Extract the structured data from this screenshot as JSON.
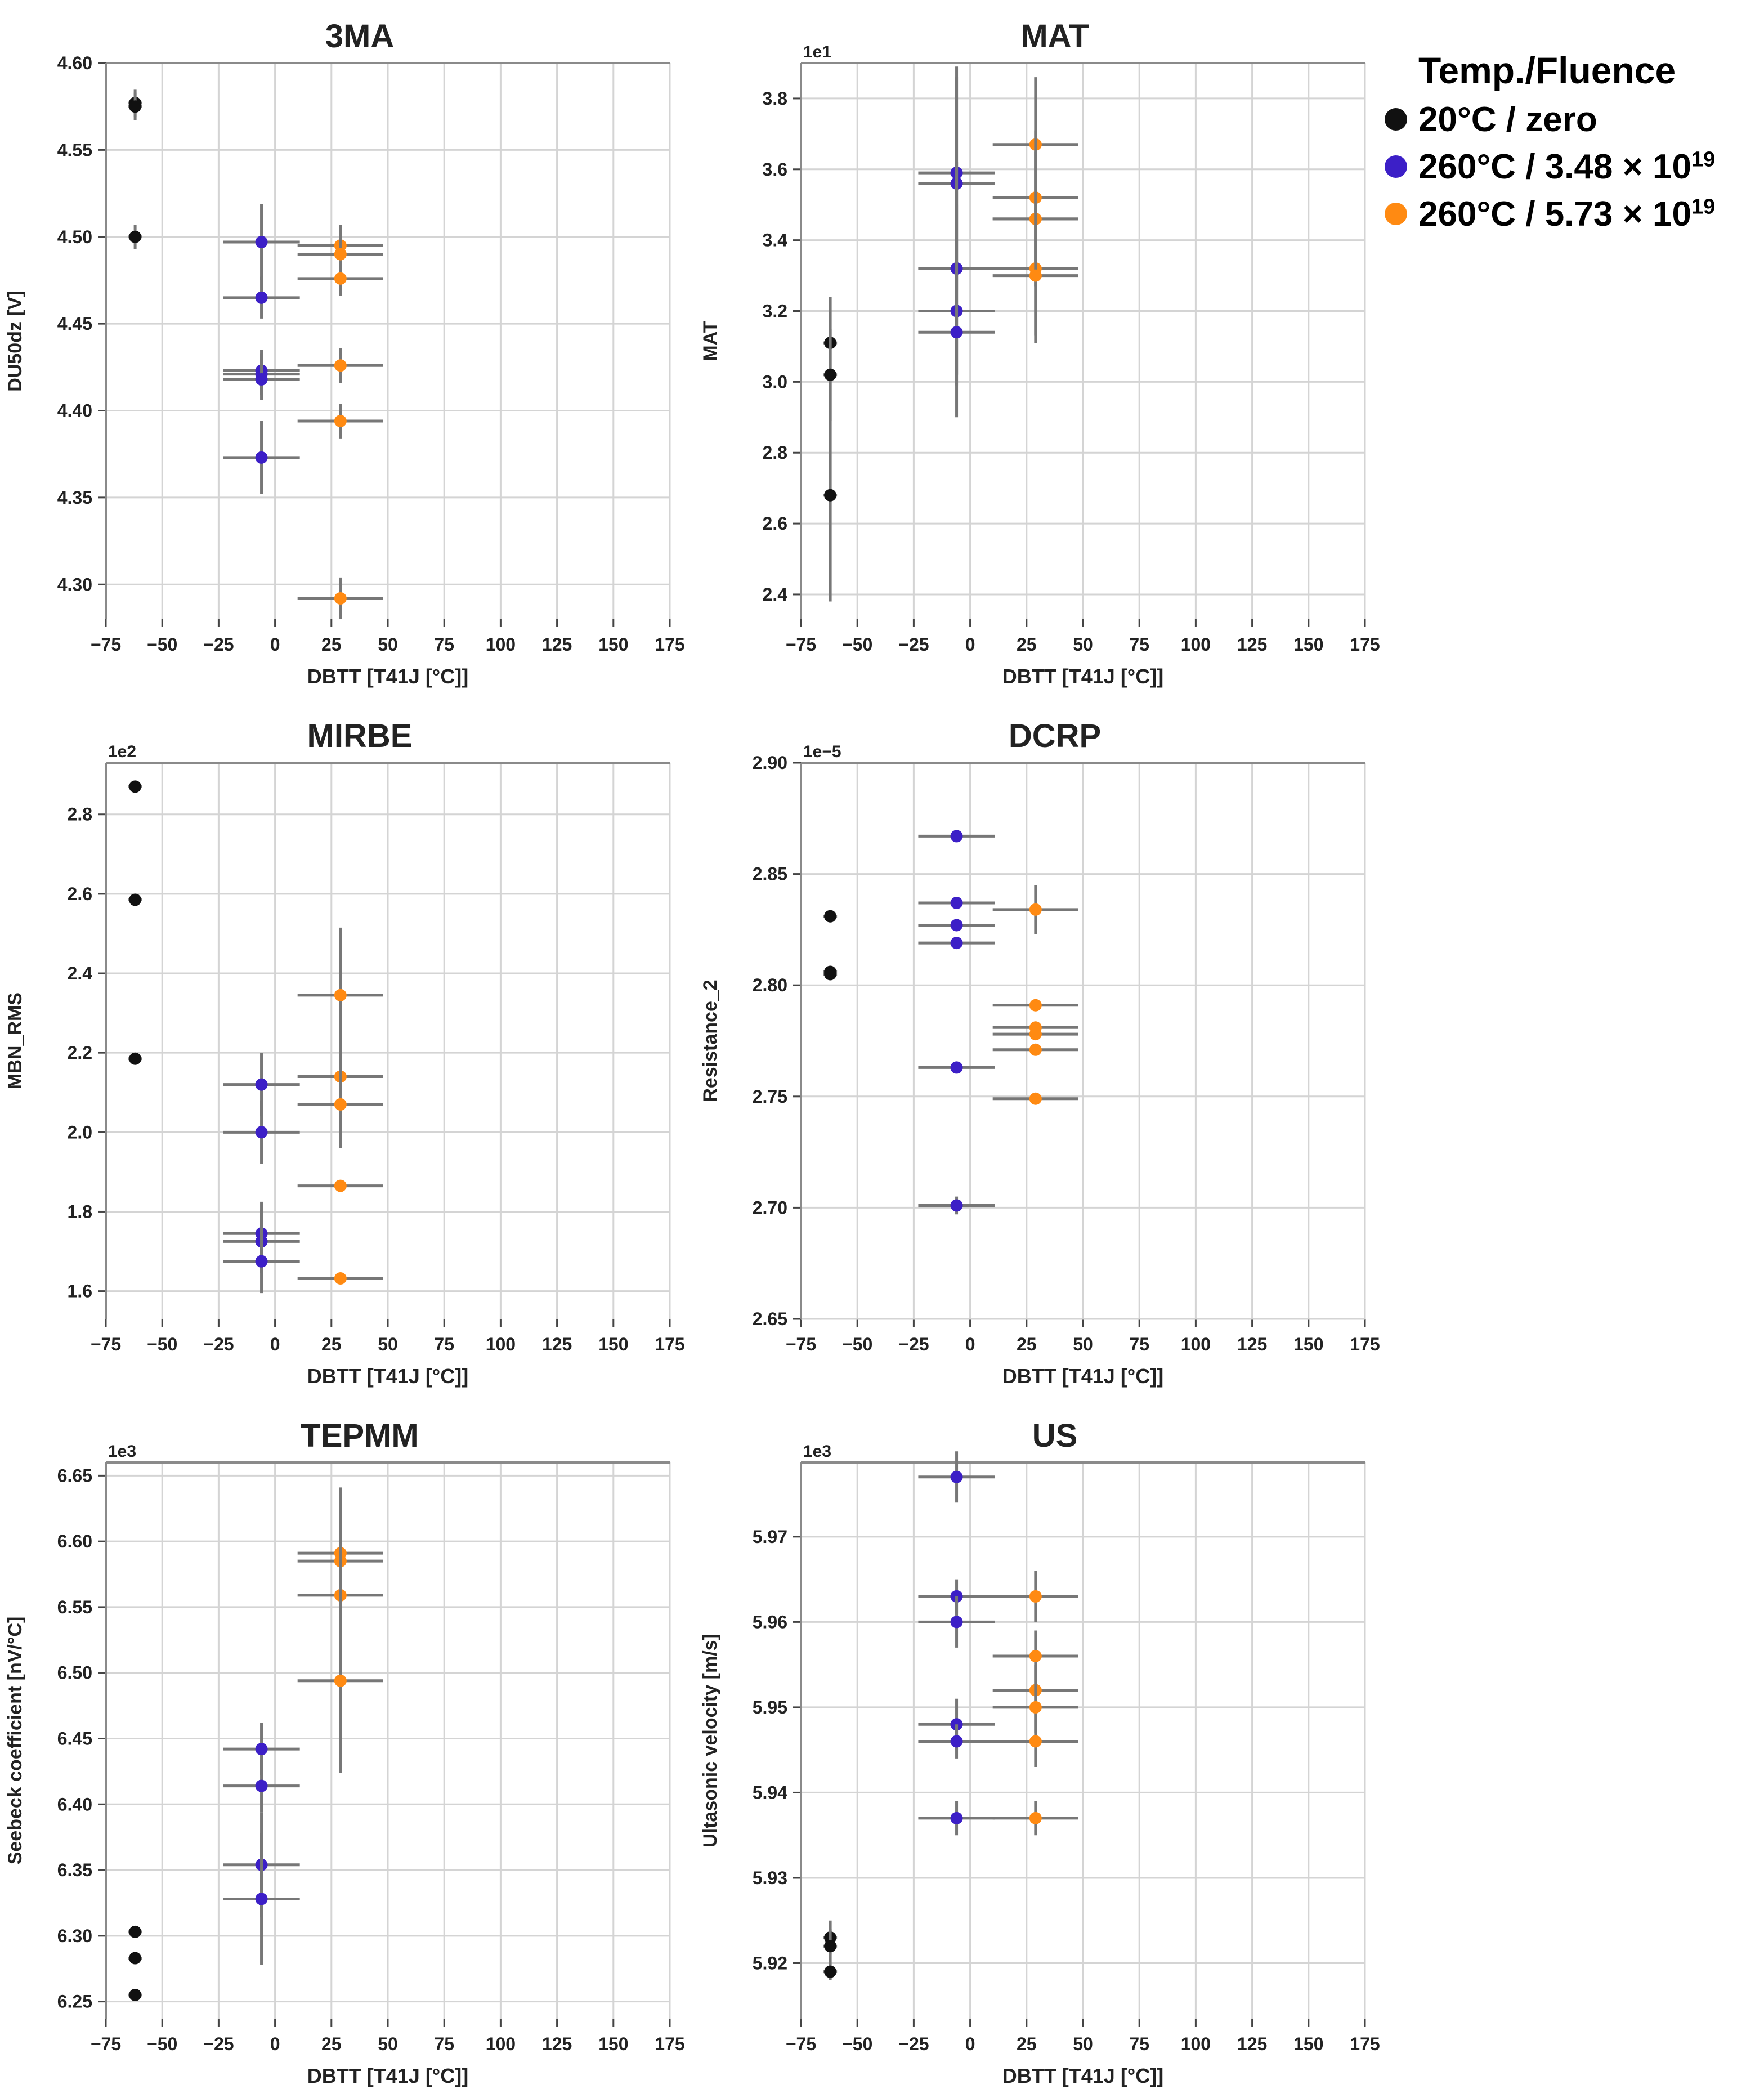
{
  "colors": {
    "ref": "#111111",
    "low": "#3c1fc7",
    "high": "#ff8a12",
    "err": "#777777",
    "grid": "#d4d4d4"
  },
  "legend": {
    "title": "Temp./Fluence",
    "entries": [
      {
        "series": "ref",
        "label": "20°C / zero",
        "sup": ""
      },
      {
        "series": "low",
        "label": "260°C / 3.48 × 10",
        "sup": "19"
      },
      {
        "series": "high",
        "label": "260°C / 5.73 × 10",
        "sup": "19"
      }
    ]
  },
  "chart_data": [
    {
      "type": "scatter",
      "title": "3MA",
      "xlabel": "DBTT [T41J [°C]]",
      "ylabel": "DU50dz [V]",
      "offset_label": "",
      "xlim": [
        -75,
        175
      ],
      "ylim": [
        4.28,
        4.6
      ],
      "xticks": [
        -75,
        -50,
        -25,
        0,
        25,
        50,
        75,
        100,
        125,
        150,
        175
      ],
      "xtick_labels": [
        "−75",
        "−50",
        "−25",
        "0",
        "25",
        "50",
        "75",
        "100",
        "125",
        "150",
        "175"
      ],
      "yticks": [
        4.3,
        4.35,
        4.4,
        4.45,
        4.5,
        4.55,
        4.6
      ],
      "ytick_labels": [
        "4.30",
        "4.35",
        "4.40",
        "4.45",
        "4.50",
        "4.55",
        "4.60"
      ],
      "points": [
        {
          "series": "ref",
          "x": -62,
          "y": 4.577,
          "xerr": 3,
          "yerr": 0.008
        },
        {
          "series": "ref",
          "x": -62,
          "y": 4.575,
          "xerr": 3,
          "yerr": 0.008
        },
        {
          "series": "ref",
          "x": -62,
          "y": 4.5,
          "xerr": 3,
          "yerr": 0.007
        },
        {
          "series": "low",
          "x": -6,
          "y": 4.497,
          "xerr": 17,
          "yerr": 0.022
        },
        {
          "series": "low",
          "x": -6,
          "y": 4.465,
          "xerr": 17,
          "yerr": 0.012
        },
        {
          "series": "low",
          "x": -6,
          "y": 4.423,
          "xerr": 17,
          "yerr": 0.012
        },
        {
          "series": "low",
          "x": -6,
          "y": 4.421,
          "xerr": 17,
          "yerr": 0.012
        },
        {
          "series": "low",
          "x": -6,
          "y": 4.418,
          "xerr": 17,
          "yerr": 0.012
        },
        {
          "series": "low",
          "x": -6,
          "y": 4.373,
          "xerr": 17,
          "yerr": 0.021
        },
        {
          "series": "high",
          "x": 29,
          "y": 4.495,
          "xerr": 19,
          "yerr": 0.012
        },
        {
          "series": "high",
          "x": 29,
          "y": 4.49,
          "xerr": 19,
          "yerr": 0.012
        },
        {
          "series": "high",
          "x": 29,
          "y": 4.476,
          "xerr": 19,
          "yerr": 0.01
        },
        {
          "series": "high",
          "x": 29,
          "y": 4.426,
          "xerr": 19,
          "yerr": 0.01
        },
        {
          "series": "high",
          "x": 29,
          "y": 4.394,
          "xerr": 19,
          "yerr": 0.01
        },
        {
          "series": "high",
          "x": 29,
          "y": 4.292,
          "xerr": 19,
          "yerr": 0.012
        }
      ]
    },
    {
      "type": "scatter",
      "title": "MAT",
      "xlabel": "DBTT [T41J [°C]]",
      "ylabel": "MAT",
      "offset_label": "1e1",
      "xlim": [
        -75,
        175
      ],
      "ylim": [
        2.33,
        3.9
      ],
      "xticks": [
        -75,
        -50,
        -25,
        0,
        25,
        50,
        75,
        100,
        125,
        150,
        175
      ],
      "xtick_labels": [
        "−75",
        "−50",
        "−25",
        "0",
        "25",
        "50",
        "75",
        "100",
        "125",
        "150",
        "175"
      ],
      "yticks": [
        2.4,
        2.6,
        2.8,
        3.0,
        3.2,
        3.4,
        3.6,
        3.8
      ],
      "ytick_labels": [
        "2.4",
        "2.6",
        "2.8",
        "3.0",
        "3.2",
        "3.4",
        "3.6",
        "3.8"
      ],
      "points": [
        {
          "series": "ref",
          "x": -62,
          "y": 3.11,
          "xerr": 3,
          "yerr": 0.13
        },
        {
          "series": "ref",
          "x": -62,
          "y": 3.02,
          "xerr": 3,
          "yerr": 0.13
        },
        {
          "series": "ref",
          "x": -62,
          "y": 2.68,
          "xerr": 3,
          "yerr": 0.3
        },
        {
          "series": "low",
          "x": -6,
          "y": 3.59,
          "xerr": 17,
          "yerr": 0.3
        },
        {
          "series": "low",
          "x": -6,
          "y": 3.56,
          "xerr": 17,
          "yerr": 0.3
        },
        {
          "series": "low",
          "x": -6,
          "y": 3.32,
          "xerr": 17,
          "yerr": 0.3
        },
        {
          "series": "low",
          "x": -6,
          "y": 3.32,
          "xerr": 17,
          "yerr": 0.3
        },
        {
          "series": "low",
          "x": -6,
          "y": 3.2,
          "xerr": 17,
          "yerr": 0.3
        },
        {
          "series": "low",
          "x": -6,
          "y": 3.14,
          "xerr": 17,
          "yerr": 0.15
        },
        {
          "series": "high",
          "x": 29,
          "y": 3.67,
          "xerr": 19,
          "yerr": 0.19
        },
        {
          "series": "high",
          "x": 29,
          "y": 3.52,
          "xerr": 19,
          "yerr": 0.19
        },
        {
          "series": "high",
          "x": 29,
          "y": 3.46,
          "xerr": 19,
          "yerr": 0.19
        },
        {
          "series": "high",
          "x": 29,
          "y": 3.46,
          "xerr": 19,
          "yerr": 0.19
        },
        {
          "series": "high",
          "x": 29,
          "y": 3.32,
          "xerr": 19,
          "yerr": 0.19
        },
        {
          "series": "high",
          "x": 29,
          "y": 3.3,
          "xerr": 19,
          "yerr": 0.19
        }
      ]
    },
    {
      "type": "scatter",
      "title": "MIRBE",
      "xlabel": "DBTT [T41J [°C]]",
      "ylabel": "MBN_RMS",
      "offset_label": "1e2",
      "xlim": [
        -75,
        175
      ],
      "ylim": [
        1.53,
        2.93
      ],
      "xticks": [
        -75,
        -50,
        -25,
        0,
        25,
        50,
        75,
        100,
        125,
        150,
        175
      ],
      "xtick_labels": [
        "−75",
        "−50",
        "−25",
        "0",
        "25",
        "50",
        "75",
        "100",
        "125",
        "150",
        "175"
      ],
      "yticks": [
        1.6,
        1.8,
        2.0,
        2.2,
        2.4,
        2.6,
        2.8
      ],
      "ytick_labels": [
        "1.6",
        "1.8",
        "2.0",
        "2.2",
        "2.4",
        "2.6",
        "2.8"
      ],
      "points": [
        {
          "series": "ref",
          "x": -62,
          "y": 2.87,
          "xerr": 3,
          "yerr": 0.015
        },
        {
          "series": "ref",
          "x": -62,
          "y": 2.585,
          "xerr": 3,
          "yerr": 0.015
        },
        {
          "series": "ref",
          "x": -62,
          "y": 2.185,
          "xerr": 3,
          "yerr": 0.015
        },
        {
          "series": "low",
          "x": -6,
          "y": 2.12,
          "xerr": 17,
          "yerr": 0.08
        },
        {
          "series": "low",
          "x": -6,
          "y": 2.0,
          "xerr": 17,
          "yerr": 0.08
        },
        {
          "series": "low",
          "x": -6,
          "y": 1.745,
          "xerr": 17,
          "yerr": 0.08
        },
        {
          "series": "low",
          "x": -6,
          "y": 1.725,
          "xerr": 17,
          "yerr": 0.08
        },
        {
          "series": "low",
          "x": -6,
          "y": 1.675,
          "xerr": 17,
          "yerr": 0.08
        },
        {
          "series": "high",
          "x": 29,
          "y": 2.345,
          "xerr": 19,
          "yerr": 0.17
        },
        {
          "series": "high",
          "x": 29,
          "y": 2.14,
          "xerr": 19,
          "yerr": 0.14
        },
        {
          "series": "high",
          "x": 29,
          "y": 2.07,
          "xerr": 19,
          "yerr": 0.11
        },
        {
          "series": "high",
          "x": 29,
          "y": 1.865,
          "xerr": 19,
          "yerr": 0.012
        },
        {
          "series": "high",
          "x": 29,
          "y": 1.632,
          "xerr": 19,
          "yerr": 0.012
        }
      ]
    },
    {
      "type": "scatter",
      "title": "DCRP",
      "xlabel": "DBTT [T41J [°C]]",
      "ylabel": "Resistance_2",
      "offset_label": "1e−5",
      "xlim": [
        -75,
        175
      ],
      "ylim": [
        2.65,
        2.9
      ],
      "xticks": [
        -75,
        -50,
        -25,
        0,
        25,
        50,
        75,
        100,
        125,
        150,
        175
      ],
      "xtick_labels": [
        "−75",
        "−50",
        "−25",
        "0",
        "25",
        "50",
        "75",
        "100",
        "125",
        "150",
        "175"
      ],
      "yticks": [
        2.65,
        2.7,
        2.75,
        2.8,
        2.85,
        2.9
      ],
      "ytick_labels": [
        "2.65",
        "2.70",
        "2.75",
        "2.80",
        "2.85",
        "2.90"
      ],
      "points": [
        {
          "series": "ref",
          "x": -62,
          "y": 2.831,
          "xerr": 3,
          "yerr": 0.002
        },
        {
          "series": "ref",
          "x": -62,
          "y": 2.806,
          "xerr": 3,
          "yerr": 0.002
        },
        {
          "series": "ref",
          "x": -62,
          "y": 2.805,
          "xerr": 3,
          "yerr": 0.002
        },
        {
          "series": "low",
          "x": -6,
          "y": 2.867,
          "xerr": 17,
          "yerr": 0.002
        },
        {
          "series": "low",
          "x": -6,
          "y": 2.837,
          "xerr": 17,
          "yerr": 0.002
        },
        {
          "series": "low",
          "x": -6,
          "y": 2.827,
          "xerr": 17,
          "yerr": 0.002
        },
        {
          "series": "low",
          "x": -6,
          "y": 2.819,
          "xerr": 17,
          "yerr": 0.002
        },
        {
          "series": "low",
          "x": -6,
          "y": 2.763,
          "xerr": 17,
          "yerr": 0.002
        },
        {
          "series": "low",
          "x": -6,
          "y": 2.701,
          "xerr": 17,
          "yerr": 0.004
        },
        {
          "series": "high",
          "x": 29,
          "y": 2.834,
          "xerr": 19,
          "yerr": 0.011
        },
        {
          "series": "high",
          "x": 29,
          "y": 2.791,
          "xerr": 19,
          "yerr": 0.002
        },
        {
          "series": "high",
          "x": 29,
          "y": 2.781,
          "xerr": 19,
          "yerr": 0.002
        },
        {
          "series": "high",
          "x": 29,
          "y": 2.778,
          "xerr": 19,
          "yerr": 0.002
        },
        {
          "series": "high",
          "x": 29,
          "y": 2.771,
          "xerr": 19,
          "yerr": 0.002
        },
        {
          "series": "high",
          "x": 29,
          "y": 2.749,
          "xerr": 19,
          "yerr": 0.002
        }
      ]
    },
    {
      "type": "scatter",
      "title": "TEPMM",
      "xlabel": "DBTT [T41J [°C]]",
      "ylabel": "Seebeck coefficient [nV/°C]",
      "offset_label": "1e3",
      "xlim": [
        -75,
        175
      ],
      "ylim": [
        6.237,
        6.66
      ],
      "xticks": [
        -75,
        -50,
        -25,
        0,
        25,
        50,
        75,
        100,
        125,
        150,
        175
      ],
      "xtick_labels": [
        "−75",
        "−50",
        "−25",
        "0",
        "25",
        "50",
        "75",
        "100",
        "125",
        "150",
        "175"
      ],
      "yticks": [
        6.25,
        6.3,
        6.35,
        6.4,
        6.45,
        6.5,
        6.55,
        6.6,
        6.65
      ],
      "ytick_labels": [
        "6.25",
        "6.30",
        "6.35",
        "6.40",
        "6.45",
        "6.50",
        "6.55",
        "6.60",
        "6.65"
      ],
      "points": [
        {
          "series": "ref",
          "x": -62,
          "y": 6.303,
          "xerr": 3,
          "yerr": 0.003
        },
        {
          "series": "ref",
          "x": -62,
          "y": 6.283,
          "xerr": 3,
          "yerr": 0.003
        },
        {
          "series": "ref",
          "x": -62,
          "y": 6.255,
          "xerr": 3,
          "yerr": 0.003
        },
        {
          "series": "low",
          "x": -6,
          "y": 6.442,
          "xerr": 17,
          "yerr": 0.02
        },
        {
          "series": "low",
          "x": -6,
          "y": 6.414,
          "xerr": 17,
          "yerr": 0.02
        },
        {
          "series": "low",
          "x": -6,
          "y": 6.354,
          "xerr": 17,
          "yerr": 0.04
        },
        {
          "series": "low",
          "x": -6,
          "y": 6.328,
          "xerr": 17,
          "yerr": 0.05
        },
        {
          "series": "high",
          "x": 29,
          "y": 6.591,
          "xerr": 19,
          "yerr": 0.05
        },
        {
          "series": "high",
          "x": 29,
          "y": 6.585,
          "xerr": 19,
          "yerr": 0.05
        },
        {
          "series": "high",
          "x": 29,
          "y": 6.559,
          "xerr": 19,
          "yerr": 0.05
        },
        {
          "series": "high",
          "x": 29,
          "y": 6.494,
          "xerr": 19,
          "yerr": 0.07
        }
      ]
    },
    {
      "type": "scatter",
      "title": "US",
      "xlabel": "DBTT [T41J [°C]]",
      "ylabel": "Ultasonic velocity [m/s]",
      "offset_label": "1e3",
      "xlim": [
        -75,
        175
      ],
      "ylim": [
        5.9135,
        5.9787
      ],
      "xticks": [
        -75,
        -50,
        -25,
        0,
        25,
        50,
        75,
        100,
        125,
        150,
        175
      ],
      "xtick_labels": [
        "−75",
        "−50",
        "−25",
        "0",
        "25",
        "50",
        "75",
        "100",
        "125",
        "150",
        "175"
      ],
      "yticks": [
        5.92,
        5.93,
        5.94,
        5.95,
        5.96,
        5.97
      ],
      "ytick_labels": [
        "5.92",
        "5.93",
        "5.94",
        "5.95",
        "5.96",
        "5.97"
      ],
      "points": [
        {
          "series": "ref",
          "x": -62,
          "y": 5.923,
          "xerr": 3,
          "yerr": 0.002
        },
        {
          "series": "ref",
          "x": -62,
          "y": 5.922,
          "xerr": 3,
          "yerr": 0.002
        },
        {
          "series": "ref",
          "x": -62,
          "y": 5.919,
          "xerr": 3,
          "yerr": 0.001
        },
        {
          "series": "low",
          "x": -6,
          "y": 5.977,
          "xerr": 17,
          "yerr": 0.003
        },
        {
          "series": "low",
          "x": -6,
          "y": 5.963,
          "xerr": 17,
          "yerr": 0.002
        },
        {
          "series": "low",
          "x": -6,
          "y": 5.96,
          "xerr": 17,
          "yerr": 0.003
        },
        {
          "series": "low",
          "x": -6,
          "y": 5.948,
          "xerr": 17,
          "yerr": 0.003
        },
        {
          "series": "low",
          "x": -6,
          "y": 5.946,
          "xerr": 17,
          "yerr": 0.002
        },
        {
          "series": "low",
          "x": -6,
          "y": 5.937,
          "xerr": 17,
          "yerr": 0.002
        },
        {
          "series": "high",
          "x": 29,
          "y": 5.963,
          "xerr": 19,
          "yerr": 0.003
        },
        {
          "series": "high",
          "x": 29,
          "y": 5.956,
          "xerr": 19,
          "yerr": 0.003
        },
        {
          "series": "high",
          "x": 29,
          "y": 5.952,
          "xerr": 19,
          "yerr": 0.003
        },
        {
          "series": "high",
          "x": 29,
          "y": 5.95,
          "xerr": 19,
          "yerr": 0.003
        },
        {
          "series": "high",
          "x": 29,
          "y": 5.946,
          "xerr": 19,
          "yerr": 0.003
        },
        {
          "series": "high",
          "x": 29,
          "y": 5.937,
          "xerr": 19,
          "yerr": 0.002
        }
      ]
    }
  ]
}
